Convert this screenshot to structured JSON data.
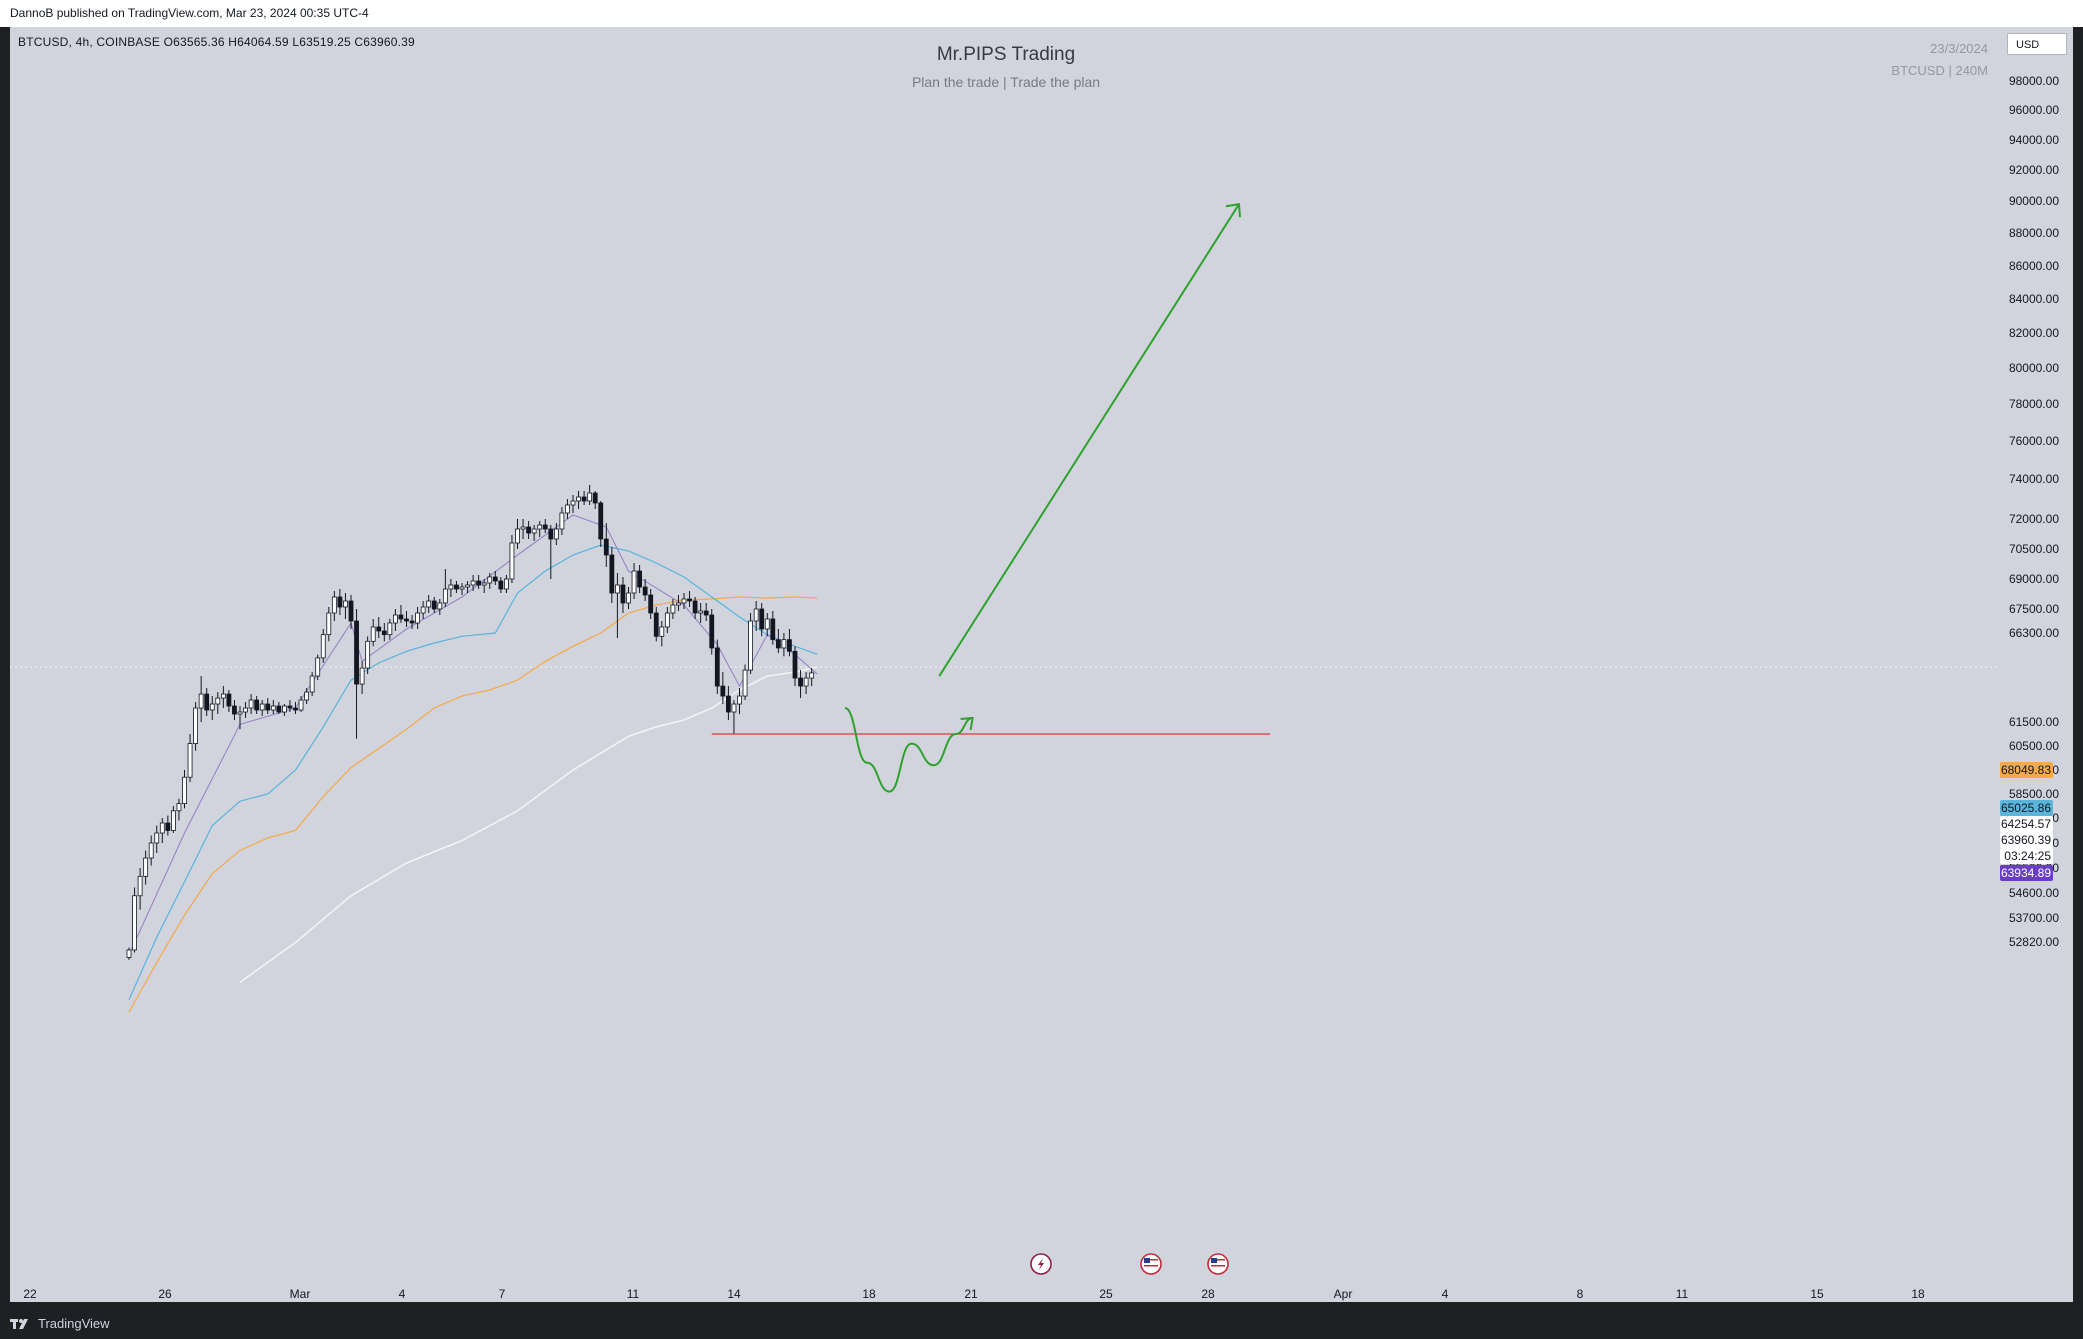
{
  "header": {
    "publish_line": "DannoB published on TradingView.com, Mar 23, 2024 00:35 UTC-4"
  },
  "footer": {
    "brand": "TradingView"
  },
  "chart_header": {
    "legend": "BTCUSD, 4h, COINBASE  O63565.36  H64064.59  L63519.25  C63960.39",
    "title": "Mr.PIPS Trading",
    "subtitle": "Plan the trade | Trade the plan",
    "date": "23/3/2024",
    "symbol_tf": "BTCUSD | 240M",
    "currency": "USD"
  },
  "colors": {
    "background": "#d1d4dc",
    "candle": "#131722",
    "ma_fast": "#9a83c6",
    "ma_mid": "#5ab4dc",
    "ma_slow": "#f5a947",
    "ma_long": "#f2f3f5",
    "support_line": "#e03a3a",
    "projection": "#2ea12e"
  },
  "icons": [
    "flash-event-icon",
    "us-flag-event-icon",
    "us-flag-event-icon"
  ],
  "chart_data": {
    "type": "candlestick",
    "symbol": "BTCUSD",
    "timeframe": "4h",
    "exchange": "COINBASE",
    "last_ohlc": {
      "open": 63565.36,
      "high": 64064.59,
      "low": 63519.25,
      "close": 63960.39
    },
    "x_ticks": [
      "22",
      "26",
      "Mar",
      "4",
      "7",
      "11",
      "14",
      "18",
      "21",
      "25",
      "28",
      "Apr",
      "4",
      "8",
      "11",
      "15",
      "18"
    ],
    "y_ticks": [
      "98000.00",
      "96000.00",
      "94000.00",
      "92000.00",
      "90000.00",
      "88000.00",
      "86000.00",
      "84000.00",
      "82000.00",
      "80000.00",
      "78000.00",
      "76000.00",
      "74000.00",
      "72000.00",
      "70500.00",
      "69000.00",
      "67500.00",
      "66300.00",
      "61500.00",
      "60500.00",
      "59500.00",
      "58500.00",
      "57500.00",
      "56500.00",
      "55500.00",
      "54600.00",
      "53700.00",
      "52820.00"
    ],
    "price_labels": [
      {
        "value": "68049.83",
        "color": "#f5a947",
        "text_color": "#131722"
      },
      {
        "value": "65025.86",
        "color": "#5ab4dc",
        "text_color": "#131722"
      },
      {
        "value": "64254.57",
        "color": "#ffffff",
        "text_color": "#131722"
      },
      {
        "value": "63960.39",
        "color": "#ffffff",
        "text_color": "#131722"
      },
      {
        "value": "03:24:25",
        "color": "#ffffff",
        "text_color": "#131722"
      },
      {
        "value": "63934.89",
        "color": "#6a3ec2",
        "text_color": "#ffffff"
      }
    ],
    "candles": [
      [
        52200,
        52600,
        52100,
        52500
      ],
      [
        52500,
        54800,
        52400,
        54500
      ],
      [
        54500,
        55500,
        54000,
        55200
      ],
      [
        55200,
        56200,
        54900,
        55900
      ],
      [
        55900,
        56800,
        55600,
        56500
      ],
      [
        56500,
        57200,
        56100,
        56900
      ],
      [
        56900,
        57500,
        56500,
        57300
      ],
      [
        57300,
        57600,
        56800,
        57000
      ],
      [
        57000,
        58000,
        56900,
        57800
      ],
      [
        57800,
        58300,
        57400,
        58100
      ],
      [
        58100,
        59500,
        57900,
        59200
      ],
      [
        59200,
        61000,
        59000,
        60600
      ],
      [
        60600,
        62500,
        60300,
        62200
      ],
      [
        62200,
        63800,
        61500,
        62900
      ],
      [
        62900,
        63200,
        61800,
        62100
      ],
      [
        62100,
        62800,
        61600,
        62400
      ],
      [
        62400,
        63000,
        61900,
        62700
      ],
      [
        62700,
        63300,
        62200,
        62900
      ],
      [
        62900,
        63100,
        62000,
        62300
      ],
      [
        62300,
        62600,
        61600,
        61900
      ],
      [
        61900,
        62300,
        61200,
        62000
      ],
      [
        62000,
        62500,
        61700,
        62200
      ],
      [
        62200,
        62900,
        61900,
        62600
      ],
      [
        62600,
        62800,
        61900,
        62100
      ],
      [
        62100,
        62600,
        61800,
        62400
      ],
      [
        62400,
        62700,
        61900,
        62100
      ],
      [
        62100,
        62600,
        61900,
        62300
      ],
      [
        62300,
        62500,
        61900,
        62000
      ],
      [
        62000,
        62400,
        61800,
        62300
      ],
      [
        62300,
        62600,
        62000,
        62200
      ],
      [
        62200,
        62500,
        61900,
        62100
      ],
      [
        62100,
        62800,
        62000,
        62600
      ],
      [
        62600,
        63200,
        62400,
        63000
      ],
      [
        63000,
        64000,
        62800,
        63800
      ],
      [
        63800,
        65000,
        63600,
        64800
      ],
      [
        64800,
        66500,
        64500,
        66200
      ],
      [
        66200,
        67600,
        65800,
        67300
      ],
      [
        67300,
        68400,
        66900,
        68100
      ],
      [
        68100,
        68500,
        67200,
        67600
      ],
      [
        67600,
        68300,
        67000,
        67900
      ],
      [
        67900,
        68200,
        66500,
        66900
      ],
      [
        66900,
        67500,
        60800,
        63400
      ],
      [
        63400,
        64600,
        62900,
        64200
      ],
      [
        64200,
        66100,
        63900,
        65800
      ],
      [
        65800,
        67000,
        65500,
        66600
      ],
      [
        66600,
        67100,
        66000,
        66400
      ],
      [
        66400,
        66800,
        65800,
        66200
      ],
      [
        66200,
        67000,
        65900,
        66800
      ],
      [
        66800,
        67500,
        66400,
        67200
      ],
      [
        67200,
        67700,
        66800,
        67000
      ],
      [
        67000,
        67400,
        66600,
        66900
      ],
      [
        66900,
        67200,
        66500,
        66800
      ],
      [
        66800,
        67600,
        66500,
        67300
      ],
      [
        67300,
        67900,
        67000,
        67600
      ],
      [
        67600,
        68200,
        67300,
        67900
      ],
      [
        67900,
        68100,
        67300,
        67500
      ],
      [
        67500,
        68000,
        67200,
        67800
      ],
      [
        67800,
        69500,
        67600,
        68500
      ],
      [
        68500,
        69000,
        68100,
        68700
      ],
      [
        68700,
        68900,
        68300,
        68500
      ],
      [
        68500,
        68800,
        68200,
        68600
      ],
      [
        68600,
        68900,
        68300,
        68700
      ],
      [
        68700,
        69200,
        68400,
        68900
      ],
      [
        68900,
        69200,
        68500,
        68700
      ],
      [
        68700,
        69000,
        68300,
        68800
      ],
      [
        68800,
        69300,
        68500,
        69100
      ],
      [
        69100,
        69400,
        68700,
        68900
      ],
      [
        68900,
        69100,
        68300,
        68500
      ],
      [
        68500,
        69200,
        68300,
        69000
      ],
      [
        69000,
        71200,
        68800,
        70800
      ],
      [
        70800,
        72000,
        70500,
        71500
      ],
      [
        71500,
        72000,
        71000,
        71600
      ],
      [
        71600,
        71900,
        71000,
        71300
      ],
      [
        71300,
        71700,
        70900,
        71500
      ],
      [
        71500,
        71900,
        71100,
        71700
      ],
      [
        71700,
        72000,
        71300,
        71500
      ],
      [
        71500,
        71700,
        69000,
        71000
      ],
      [
        71000,
        71800,
        70700,
        71500
      ],
      [
        71500,
        72600,
        71200,
        72300
      ],
      [
        72300,
        73000,
        72000,
        72700
      ],
      [
        72700,
        73200,
        72300,
        72900
      ],
      [
        72900,
        73400,
        72500,
        73100
      ],
      [
        73100,
        73400,
        72700,
        72900
      ],
      [
        72900,
        73700,
        72700,
        73300
      ],
      [
        73300,
        73400,
        72500,
        72800
      ],
      [
        72800,
        72900,
        70600,
        71000
      ],
      [
        71000,
        71800,
        69600,
        70200
      ],
      [
        70200,
        70600,
        67800,
        68300
      ],
      [
        68300,
        69300,
        66000,
        68700
      ],
      [
        68700,
        69100,
        67300,
        67800
      ],
      [
        67800,
        68600,
        67500,
        68300
      ],
      [
        68300,
        69800,
        68000,
        69400
      ],
      [
        69400,
        69700,
        68300,
        68600
      ],
      [
        68600,
        69000,
        67900,
        68200
      ],
      [
        68200,
        68500,
        67000,
        67300
      ],
      [
        67300,
        67600,
        65800,
        66100
      ],
      [
        66100,
        66900,
        65500,
        66600
      ],
      [
        66600,
        67600,
        66300,
        67300
      ],
      [
        67300,
        68000,
        67000,
        67700
      ],
      [
        67700,
        68200,
        67400,
        67800
      ],
      [
        67800,
        68300,
        67500,
        68000
      ],
      [
        68000,
        68400,
        67600,
        67900
      ],
      [
        67900,
        68100,
        67000,
        67300
      ],
      [
        67300,
        67800,
        66800,
        67400
      ],
      [
        67400,
        67800,
        66900,
        67200
      ],
      [
        67200,
        67500,
        65000,
        65400
      ],
      [
        65400,
        65900,
        62900,
        63300
      ],
      [
        63300,
        64000,
        62400,
        62800
      ],
      [
        62800,
        63300,
        61600,
        62000
      ],
      [
        62000,
        62600,
        61000,
        62400
      ],
      [
        62400,
        63200,
        61900,
        62800
      ],
      [
        62800,
        64400,
        62600,
        64100
      ],
      [
        64100,
        67300,
        63900,
        66900
      ],
      [
        66900,
        67900,
        66400,
        67500
      ],
      [
        67500,
        67800,
        66100,
        66500
      ],
      [
        66500,
        67300,
        66100,
        67000
      ],
      [
        67000,
        67400,
        65600,
        65900
      ],
      [
        65900,
        66500,
        65100,
        65400
      ],
      [
        65400,
        66300,
        64900,
        65900
      ],
      [
        65900,
        66500,
        64900,
        65200
      ],
      [
        65200,
        65500,
        63300,
        63700
      ],
      [
        63700,
        64100,
        62700,
        63300
      ],
      [
        63300,
        64000,
        62900,
        63700
      ],
      [
        63700,
        64200,
        63300,
        63960
      ]
    ],
    "ma_fast": [
      [
        0,
        52300
      ],
      [
        10,
        56900
      ],
      [
        20,
        61400
      ],
      [
        30,
        62200
      ],
      [
        40,
        66800
      ],
      [
        42,
        64600
      ],
      [
        50,
        66500
      ],
      [
        60,
        68100
      ],
      [
        70,
        70200
      ],
      [
        80,
        72200
      ],
      [
        86,
        71600
      ],
      [
        90,
        69400
      ],
      [
        100,
        67700
      ],
      [
        106,
        65600
      ],
      [
        110,
        63300
      ],
      [
        115,
        66200
      ],
      [
        120,
        65000
      ],
      [
        124,
        63900
      ]
    ],
    "ma_mid": [
      [
        0,
        50500
      ],
      [
        5,
        53000
      ],
      [
        10,
        55000
      ],
      [
        15,
        57200
      ],
      [
        20,
        58200
      ],
      [
        25,
        58500
      ],
      [
        30,
        59500
      ],
      [
        35,
        61300
      ],
      [
        40,
        63600
      ],
      [
        45,
        64500
      ],
      [
        50,
        65200
      ],
      [
        55,
        65700
      ],
      [
        60,
        66100
      ],
      [
        66,
        66300
      ],
      [
        70,
        68300
      ],
      [
        75,
        69400
      ],
      [
        80,
        70200
      ],
      [
        85,
        70700
      ],
      [
        90,
        70400
      ],
      [
        95,
        69800
      ],
      [
        100,
        69100
      ],
      [
        105,
        68100
      ],
      [
        110,
        67100
      ],
      [
        115,
        66200
      ],
      [
        120,
        65500
      ],
      [
        124,
        65025
      ]
    ],
    "ma_slow": [
      [
        0,
        50000
      ],
      [
        5,
        52000
      ],
      [
        10,
        53800
      ],
      [
        15,
        55300
      ],
      [
        20,
        56200
      ],
      [
        25,
        56700
      ],
      [
        30,
        57000
      ],
      [
        35,
        58400
      ],
      [
        40,
        59600
      ],
      [
        45,
        60400
      ],
      [
        50,
        61200
      ],
      [
        55,
        62200
      ],
      [
        60,
        62800
      ],
      [
        65,
        63100
      ],
      [
        70,
        63600
      ],
      [
        75,
        64600
      ],
      [
        80,
        65500
      ],
      [
        85,
        66300
      ],
      [
        90,
        67300
      ],
      [
        95,
        67700
      ],
      [
        100,
        67950
      ],
      [
        105,
        68000
      ],
      [
        110,
        68100
      ],
      [
        115,
        68050
      ],
      [
        120,
        68100
      ],
      [
        124,
        68050
      ]
    ],
    "ma_long": [
      [
        20,
        51200
      ],
      [
        30,
        52800
      ],
      [
        40,
        54500
      ],
      [
        50,
        55700
      ],
      [
        60,
        56600
      ],
      [
        70,
        57800
      ],
      [
        80,
        59500
      ],
      [
        90,
        60900
      ],
      [
        95,
        61300
      ],
      [
        100,
        61600
      ],
      [
        105,
        62200
      ],
      [
        110,
        63100
      ],
      [
        115,
        63800
      ],
      [
        120,
        64000
      ],
      [
        124,
        64254
      ]
    ],
    "annotations": {
      "support_level": 61000,
      "projection_path": [
        [
          129,
          62200
        ],
        [
          133,
          59800
        ],
        [
          137,
          58600
        ],
        [
          141,
          60600
        ],
        [
          145,
          59700
        ],
        [
          149,
          61000
        ],
        [
          152,
          61700
        ]
      ],
      "target_arrow": {
        "from": [
          146,
          63800
        ],
        "to": [
          200,
          89800
        ]
      }
    }
  }
}
